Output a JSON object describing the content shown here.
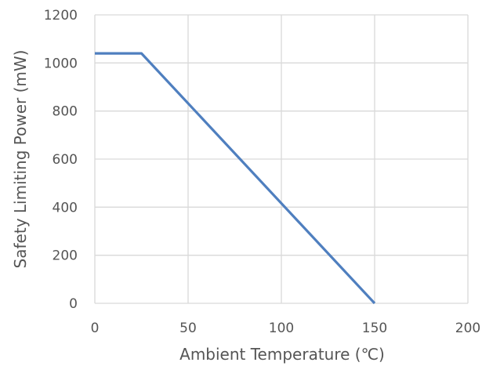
{
  "chart_data": {
    "type": "line",
    "title": "",
    "xlabel": "Ambient Temperature (℃)",
    "ylabel": "Safety Limiting Power (mW)",
    "xlim": [
      0,
      200
    ],
    "ylim": [
      0,
      1200
    ],
    "x_ticks": [
      0,
      50,
      100,
      150,
      200
    ],
    "y_ticks": [
      0,
      200,
      400,
      600,
      800,
      1000,
      1200
    ],
    "grid": true,
    "legend": "none",
    "series": [
      {
        "color": "#4f7fbf",
        "x": [
          0,
          25,
          150
        ],
        "y": [
          1040,
          1040,
          0
        ]
      }
    ]
  }
}
